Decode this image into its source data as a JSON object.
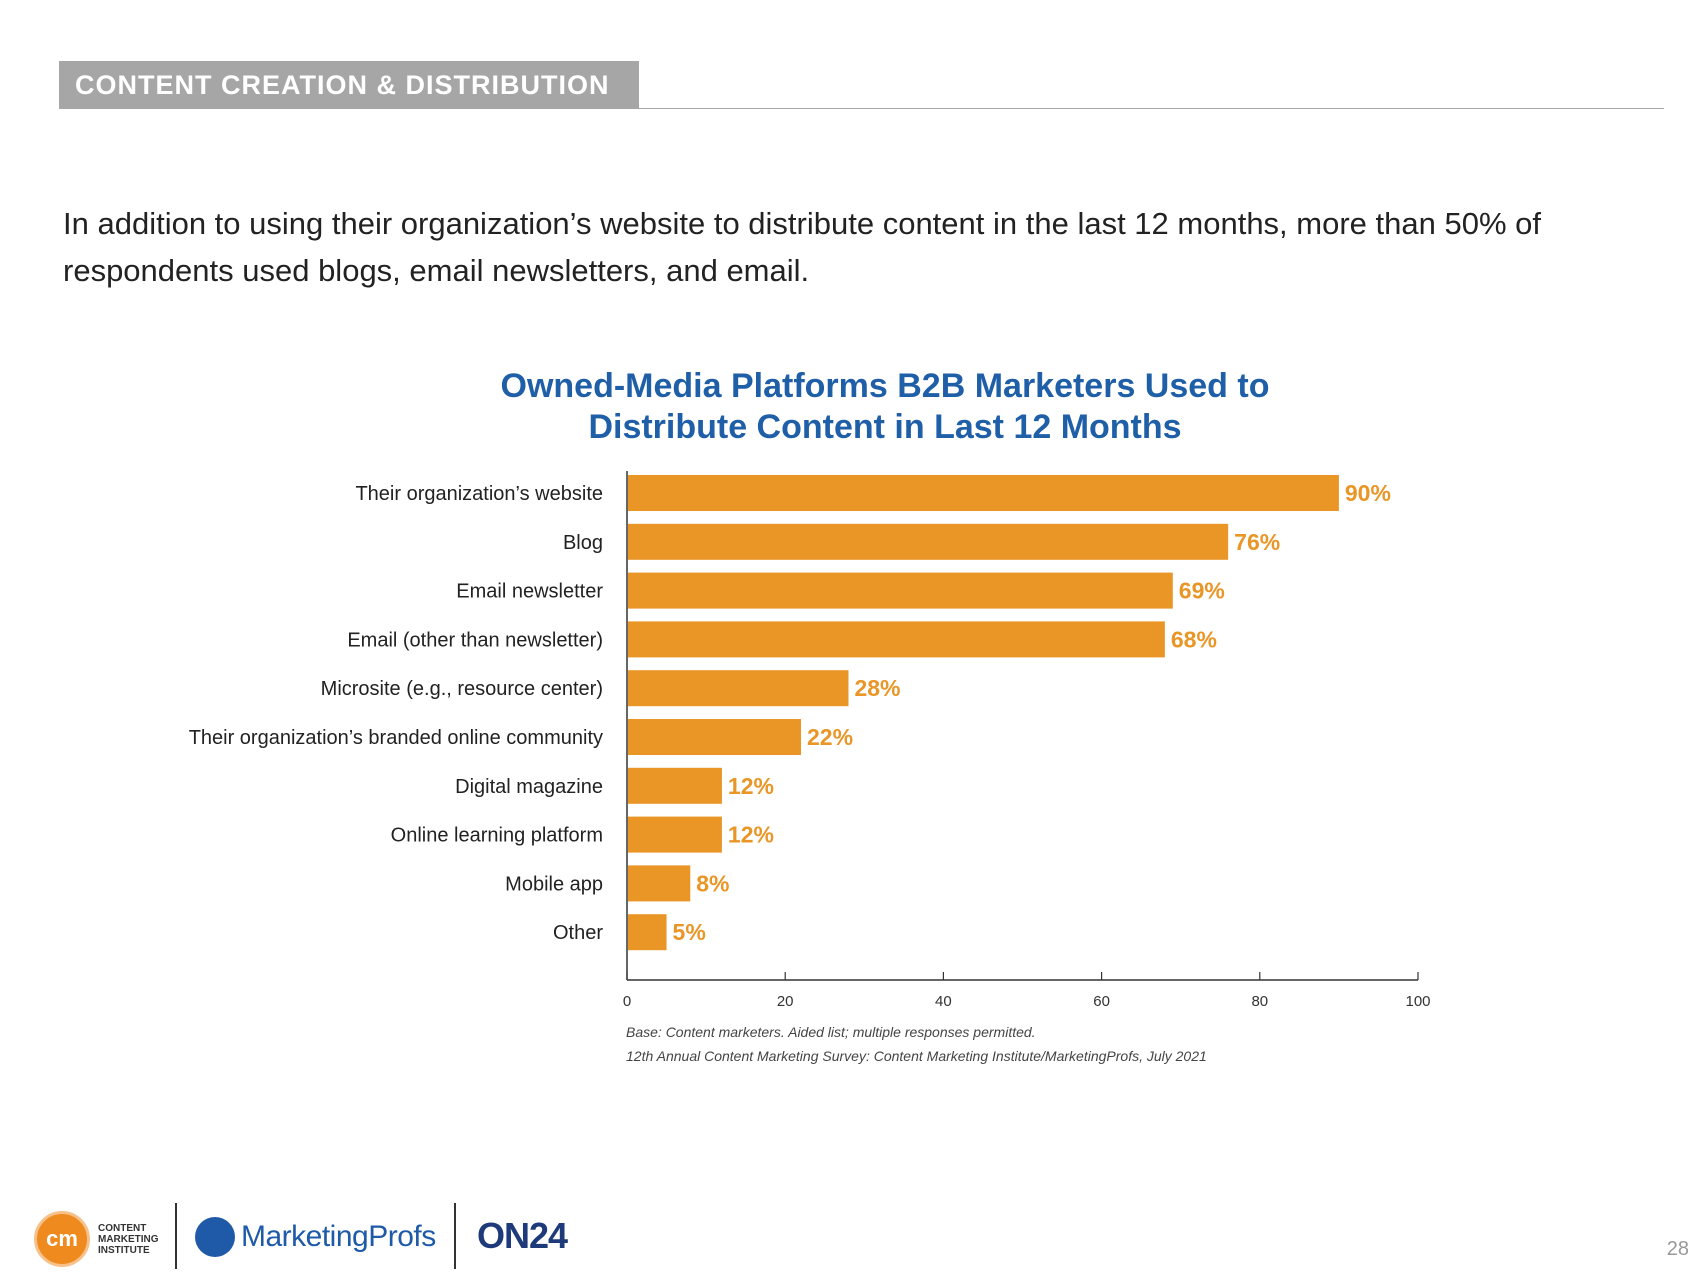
{
  "section": {
    "tag": "CONTENT CREATION & DISTRIBUTION"
  },
  "intro": "In addition to using their organization’s website to distribute content in the last 12 months, more than 50% of respondents used blogs, email newsletters, and email.",
  "chart_data": {
    "type": "bar",
    "orientation": "horizontal",
    "title": "Owned-Media Platforms B2B Marketers Used to Distribute Content in Last 12 Months",
    "title_lines": [
      "Owned-Media Platforms B2B Marketers Used to",
      "Distribute Content in Last 12 Months"
    ],
    "categories": [
      "Their organization’s website",
      "Blog",
      "Email newsletter",
      "Email (other than newsletter)",
      "Microsite (e.g., resource center)",
      "Their organization’s branded online community",
      "Digital magazine",
      "Online learning platform",
      "Mobile app",
      "Other"
    ],
    "values": [
      90,
      76,
      69,
      68,
      28,
      22,
      12,
      12,
      8,
      5
    ],
    "value_labels": [
      "90%",
      "76%",
      "69%",
      "68%",
      "28%",
      "22%",
      "12%",
      "12%",
      "8%",
      "5%"
    ],
    "xlim": [
      0,
      100
    ],
    "xticks": [
      0,
      20,
      40,
      60,
      80,
      100
    ],
    "bar_color": "#e99627",
    "label_color": "#e99627",
    "grid": false,
    "notes": [
      "Base: Content marketers. Aided list; multiple responses permitted.",
      "12th Annual Content Marketing Survey: Content Marketing Institute/MarketingProfs, July 2021"
    ]
  },
  "footer": {
    "cmi_mark": "cm",
    "cmi_lines": [
      "CONTENT",
      "MARKETING",
      "INSTITUTE"
    ],
    "marketingprofs": "MarketingProfs",
    "on24": "ON24",
    "page_number": "28"
  }
}
